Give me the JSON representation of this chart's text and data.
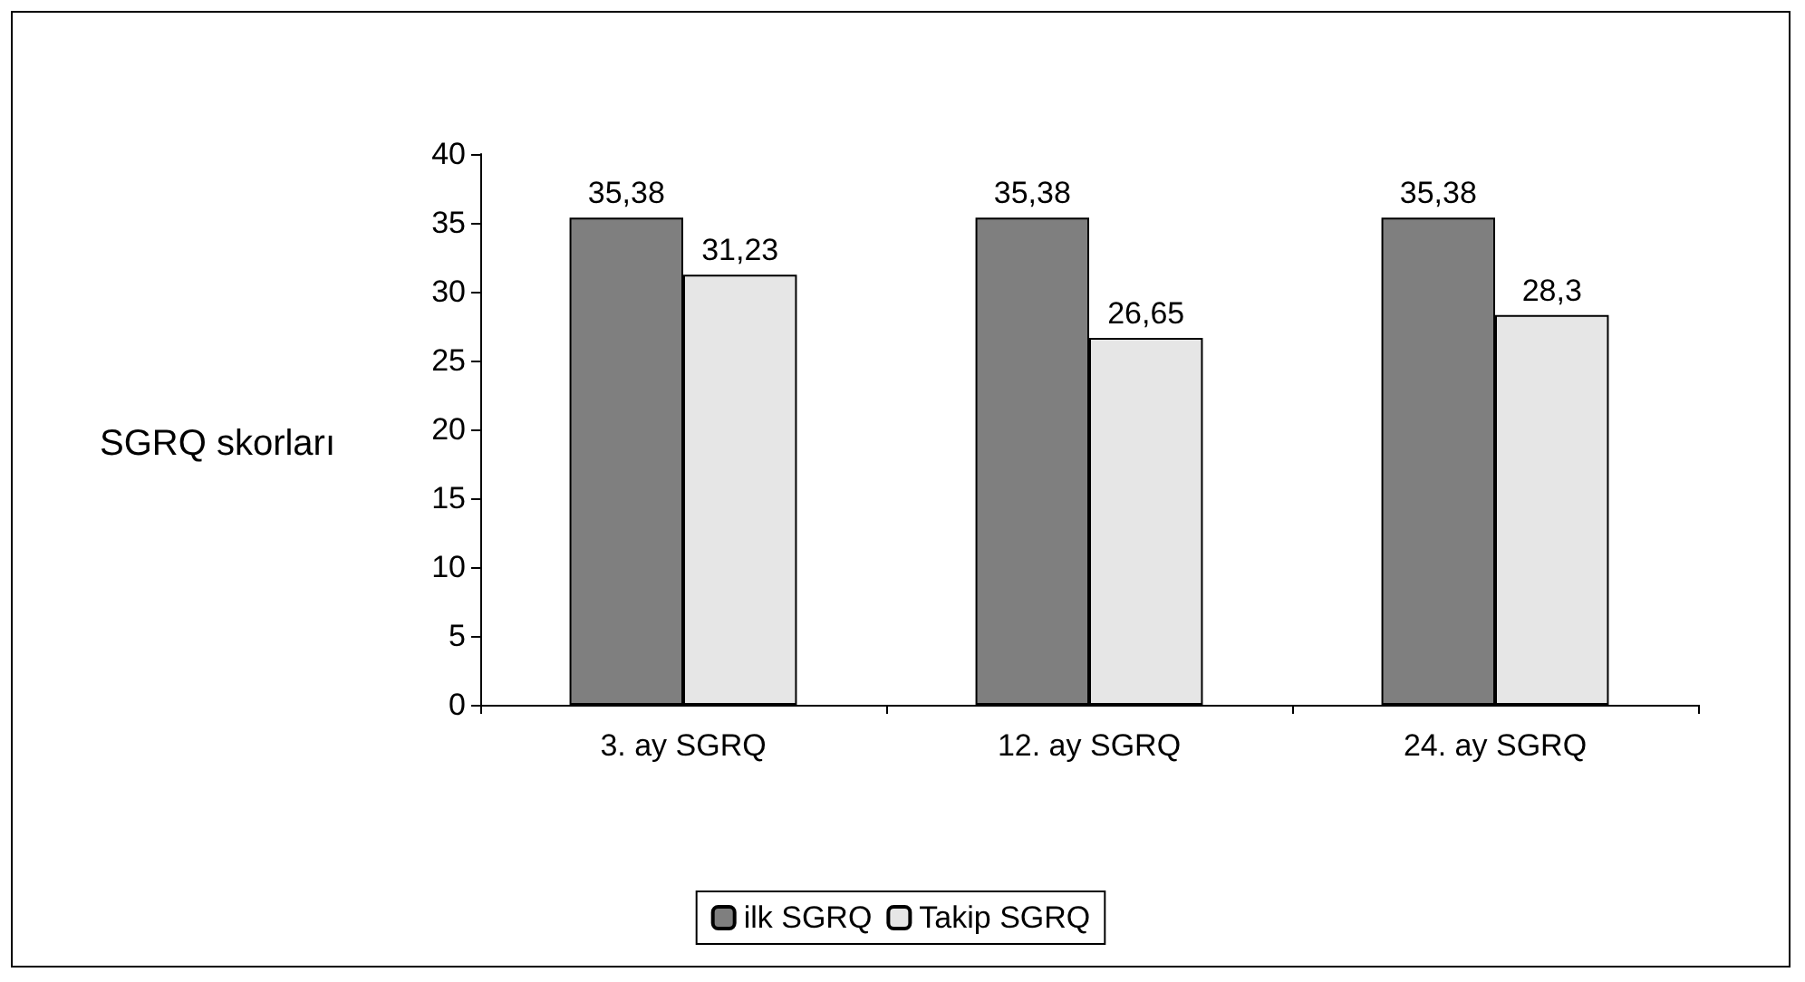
{
  "chart_data": {
    "type": "bar",
    "ylabel": "SGRQ skorları",
    "categories": [
      "3. ay SGRQ",
      "12. ay SGRQ",
      "24. ay SGRQ"
    ],
    "series": [
      {
        "name": "ilk SGRQ",
        "color": "#7f7f7f",
        "values": [
          35.38,
          35.38,
          35.38
        ],
        "value_labels": [
          "35,38",
          "35,38",
          "35,38"
        ]
      },
      {
        "name": "Takip SGRQ",
        "color": "#e6e6e6",
        "values": [
          31.23,
          26.65,
          28.3
        ],
        "value_labels": [
          "31,23",
          "26,65",
          "28,3"
        ]
      }
    ],
    "ylim": [
      0,
      40
    ],
    "yticks": [
      0,
      5,
      10,
      15,
      20,
      25,
      30,
      35,
      40
    ],
    "grid": false,
    "legend": "bottom"
  }
}
